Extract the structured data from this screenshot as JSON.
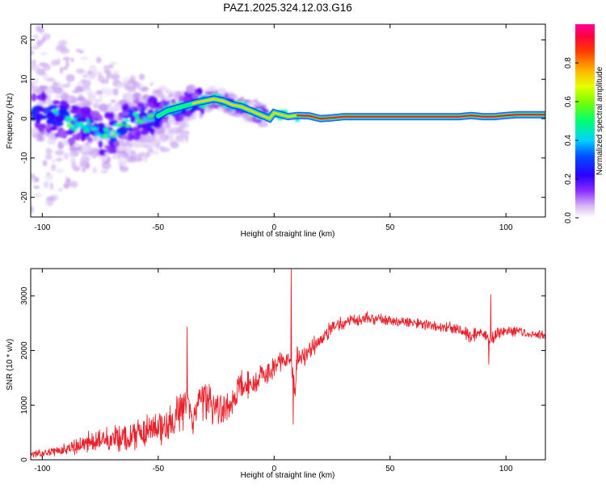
{
  "figure": {
    "title": "PAZ1.2025.324.12.03.G16"
  },
  "chart_data": [
    {
      "type": "heatmap",
      "title": "PAZ1.2025.324.12.03.G16",
      "xlabel": "Height of straight line (km)",
      "ylabel": "Frequency (Hz)",
      "xlim": [
        -105,
        117
      ],
      "ylim": [
        -25,
        24
      ],
      "x_ticks": [
        -100,
        -50,
        0,
        50,
        100
      ],
      "x_tick_labels": [
        "-100",
        "-50",
        "0",
        "50",
        "100"
      ],
      "y_ticks": [
        -20,
        -10,
        0,
        10,
        20
      ],
      "y_tick_labels": [
        "-20",
        "-10",
        "0",
        "10",
        "20"
      ],
      "ridge_frequency": {
        "x": [
          -103,
          -95,
          -88,
          -80,
          -74,
          -68,
          -60,
          -52,
          -46,
          -40,
          -34,
          -30,
          -26,
          -22,
          -18,
          -14,
          -10,
          -6,
          -2,
          0,
          3,
          6,
          10,
          15,
          20,
          25,
          30,
          40,
          50,
          60,
          70,
          80,
          85,
          90,
          95,
          100,
          105,
          110,
          117
        ],
        "freq": [
          2,
          1,
          -1,
          -2,
          -4,
          -3,
          0,
          0,
          2,
          3,
          4,
          4.5,
          5,
          4.5,
          3.5,
          3,
          2,
          1,
          0,
          1.5,
          1,
          0.5,
          0.8,
          0.7,
          0,
          0.2,
          0.5,
          0.5,
          0.5,
          0.5,
          0.5,
          0.5,
          0.8,
          0.5,
          0.5,
          0.8,
          1,
          1,
          1
        ]
      },
      "colorbar": {
        "label": "Normalized spectral amplitude",
        "range": [
          0,
          1
        ],
        "ticks": [
          0.0,
          0.2,
          0.4,
          0.6,
          0.8
        ],
        "tick_labels": [
          "0.0",
          "0.2",
          "0.4",
          "0.6",
          "0.8"
        ],
        "colors": [
          "#ffffff",
          "#b47cf0",
          "#6a00ff",
          "#0000ff",
          "#00c8ff",
          "#00ff66",
          "#ccff00",
          "#ffd200",
          "#ff7800",
          "#ff0000",
          "#ff0096"
        ]
      }
    },
    {
      "type": "line",
      "xlabel": "Height of straight line (km)",
      "ylabel": "SNR (10 * v/v)",
      "xlim": [
        -105,
        117
      ],
      "ylim": [
        0,
        3500
      ],
      "x_ticks": [
        -100,
        -50,
        0,
        50,
        100
      ],
      "x_tick_labels": [
        "-100",
        "-50",
        "0",
        "50",
        "100"
      ],
      "y_ticks": [
        0,
        1000,
        2000,
        3000
      ],
      "y_tick_labels": [
        "0",
        "1000",
        "2000",
        "3000"
      ],
      "series": [
        {
          "name": "SNR",
          "color": "#e8212b",
          "x": [
            -105,
            -100,
            -95,
            -90,
            -85,
            -80,
            -75,
            -70,
            -65,
            -60,
            -55,
            -50,
            -45,
            -40,
            -38,
            -35,
            -30,
            -25,
            -20,
            -15,
            -10,
            -5,
            0,
            3,
            6,
            8,
            9,
            10,
            12,
            15,
            20,
            25,
            30,
            35,
            40,
            50,
            60,
            70,
            80,
            85,
            90,
            93,
            95,
            100,
            105,
            110,
            117
          ],
          "mid": [
            100,
            120,
            150,
            180,
            250,
            320,
            350,
            380,
            420,
            450,
            500,
            600,
            700,
            900,
            1100,
            800,
            1100,
            1000,
            900,
            1300,
            1400,
            1500,
            1700,
            1800,
            1850,
            1600,
            1200,
            1900,
            1850,
            2000,
            2200,
            2400,
            2500,
            2550,
            2600,
            2550,
            2500,
            2450,
            2400,
            2250,
            2350,
            2200,
            2300,
            2350,
            2350,
            2300,
            2300
          ],
          "amp": [
            80,
            80,
            100,
            120,
            180,
            220,
            250,
            250,
            280,
            320,
            350,
            380,
            420,
            450,
            480,
            450,
            450,
            400,
            380,
            350,
            300,
            280,
            250,
            220,
            200,
            300,
            300,
            250,
            250,
            220,
            200,
            180,
            150,
            130,
            120,
            110,
            110,
            110,
            120,
            150,
            150,
            200,
            180,
            120,
            110,
            110,
            110
          ]
        }
      ],
      "spikes": [
        {
          "x": -37.5,
          "y": 2430
        },
        {
          "x": 7.3,
          "y": 3500
        },
        {
          "x": 8.2,
          "y": 650
        },
        {
          "x": 93.5,
          "y": 3020
        },
        {
          "x": 92.5,
          "y": 1750
        }
      ]
    }
  ]
}
